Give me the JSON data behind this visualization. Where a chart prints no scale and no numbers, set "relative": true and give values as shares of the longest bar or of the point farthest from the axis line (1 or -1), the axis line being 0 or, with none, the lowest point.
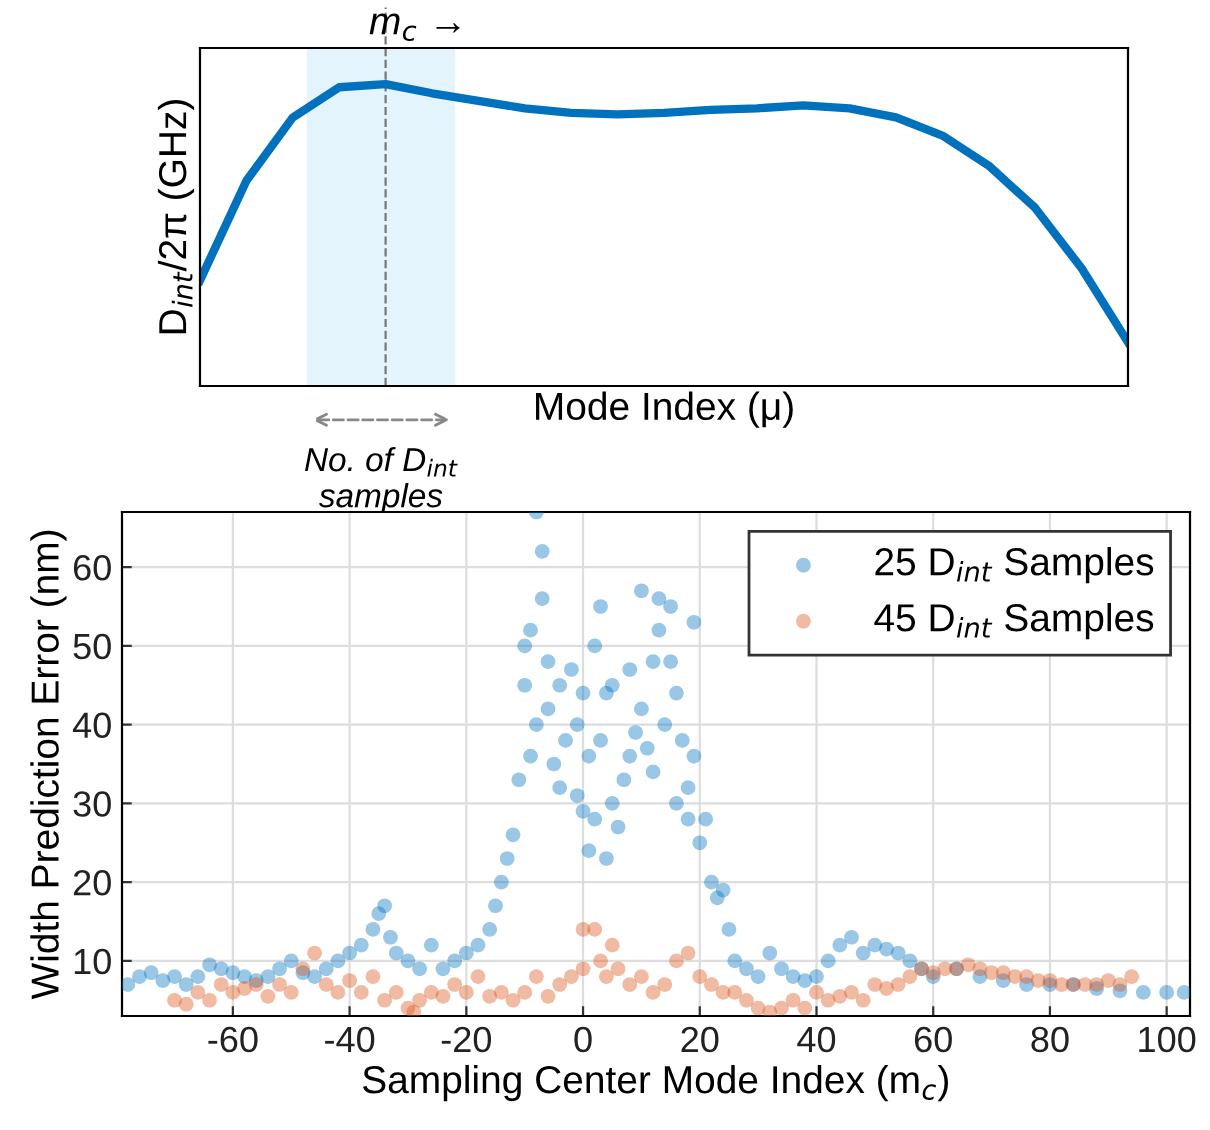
{
  "chart_data": [
    {
      "type": "line",
      "relative": true,
      "xlabel": "Mode Index (μ)",
      "ylabel": "D$_{int}$/2π (GHz)",
      "categories": [
        null,
        null,
        null,
        null,
        null,
        null,
        null,
        null,
        null,
        null,
        null,
        null,
        null,
        null,
        null,
        null,
        null,
        null,
        null,
        null,
        null
      ],
      "series": [
        {
          "color": "#0072bd",
          "values": [
            0.35,
            0.68,
            0.89,
            0.99,
            1.0,
            0.97,
            0.945,
            0.92,
            0.905,
            0.9,
            0.905,
            0.915,
            0.92,
            0.93,
            0.92,
            0.89,
            0.83,
            0.73,
            0.59,
            0.39,
            0.145
          ]
        }
      ],
      "annotations": [
        "m$_{c}$ →",
        "No. of D$_{int}$ samples"
      ]
    },
    {
      "type": "scatter",
      "xlabel": "Sampling Center Mode Index (m$_{c}$)",
      "ylabel": "Width Prediction Error (nm)",
      "xlim": [
        -79,
        104
      ],
      "ylim": [
        3,
        67
      ],
      "xticks": [
        -60,
        -40,
        -20,
        0,
        20,
        40,
        60,
        80,
        100
      ],
      "yticks": [
        10,
        20,
        30,
        40,
        50,
        60
      ],
      "grid": true,
      "legend": "top right",
      "marker": "circle",
      "series": [
        {
          "name": "25 D$_{int}$ Samples",
          "color": "#0072bd",
          "x": [
            -78,
            -76,
            -74,
            -72,
            -70,
            -68,
            -66,
            -64,
            -62,
            -60,
            -58,
            -56,
            -54,
            -52,
            -50,
            -48,
            -46,
            -44,
            -42,
            -40,
            -38,
            -36,
            -35,
            -34,
            -33,
            -32,
            -30,
            -28,
            -26,
            -24,
            -22,
            -20,
            -18,
            -16,
            -15,
            -14,
            -13,
            -12,
            -11,
            -10,
            -10,
            -9,
            -9,
            -8,
            -8,
            -7,
            -7,
            -6,
            -6,
            -5,
            -4,
            -4,
            -3,
            -2,
            -1,
            -1,
            0,
            0,
            1,
            1,
            2,
            2,
            3,
            3,
            4,
            4,
            5,
            5,
            6,
            7,
            8,
            8,
            9,
            10,
            10,
            11,
            12,
            12,
            13,
            13,
            14,
            15,
            15,
            16,
            16,
            17,
            18,
            18,
            19,
            19,
            20,
            21,
            22,
            23,
            24,
            25,
            26,
            28,
            30,
            32,
            34,
            36,
            38,
            40,
            42,
            44,
            46,
            48,
            50,
            52,
            54,
            56,
            58,
            60,
            64,
            68,
            72,
            76,
            80,
            84,
            88,
            92,
            96,
            100,
            103
          ],
          "values": [
            7,
            8,
            8.5,
            7.5,
            8,
            7,
            8,
            9.5,
            9,
            8.5,
            8,
            7.5,
            8,
            9,
            10,
            8.5,
            8,
            9,
            10,
            11,
            12,
            14,
            16,
            17,
            13,
            11,
            10,
            9,
            12,
            9,
            10,
            11,
            12,
            14,
            17,
            20,
            23,
            26,
            33,
            50,
            45,
            52,
            36,
            67,
            40,
            62,
            56,
            48,
            42,
            35,
            45,
            32,
            38,
            47,
            40,
            31,
            44,
            29,
            36,
            24,
            50,
            28,
            55,
            38,
            44,
            23,
            30,
            45,
            27,
            33,
            47,
            36,
            39,
            57,
            42,
            37,
            48,
            34,
            56,
            52,
            40,
            55,
            48,
            30,
            44,
            38,
            32,
            28,
            53,
            36,
            25,
            28,
            20,
            18,
            19,
            14,
            10,
            9,
            8,
            11,
            9,
            8,
            7.5,
            8,
            10,
            12,
            13,
            11,
            12,
            11.5,
            11,
            10,
            9,
            8,
            9,
            8,
            7.5,
            7,
            7,
            7,
            6.5,
            6.2,
            6,
            6,
            6
          ]
        },
        {
          "name": "45 D$_{int}$ Samples",
          "color": "#d95319",
          "x": [
            -70,
            -68,
            -66,
            -64,
            -62,
            -60,
            -58,
            -56,
            -54,
            -52,
            -50,
            -48,
            -46,
            -44,
            -42,
            -40,
            -38,
            -36,
            -34,
            -32,
            -30,
            -29,
            -28,
            -26,
            -24,
            -22,
            -20,
            -18,
            -16,
            -14,
            -12,
            -10,
            -8,
            -6,
            -4,
            -2,
            0,
            0,
            2,
            3,
            4,
            5,
            6,
            8,
            10,
            12,
            14,
            16,
            18,
            20,
            22,
            24,
            26,
            28,
            30,
            32,
            34,
            36,
            38,
            40,
            42,
            44,
            46,
            48,
            50,
            52,
            54,
            56,
            58,
            60,
            62,
            64,
            66,
            68,
            70,
            72,
            74,
            76,
            78,
            80,
            82,
            84,
            86,
            88,
            90,
            92,
            94
          ],
          "values": [
            5,
            4.5,
            6,
            5,
            7,
            6,
            6.5,
            7,
            5.5,
            7,
            6,
            9,
            11,
            7,
            6,
            7.5,
            6,
            8,
            5,
            6,
            4,
            3.5,
            5,
            6,
            5.5,
            7,
            6,
            8,
            5.5,
            6,
            5,
            6,
            8,
            5.5,
            7,
            8,
            9,
            14,
            14,
            10,
            8,
            12,
            9,
            7,
            8,
            6,
            7,
            10,
            11,
            8,
            7,
            6,
            6,
            5,
            4,
            3.5,
            4,
            5,
            4,
            6,
            5,
            5.5,
            6,
            5,
            7,
            6.5,
            7,
            8,
            9,
            8.5,
            9,
            9,
            9.5,
            9,
            8.5,
            8.5,
            8,
            8,
            7.5,
            7.5,
            7,
            7,
            7,
            7,
            7.5,
            7,
            8
          ]
        }
      ]
    }
  ]
}
